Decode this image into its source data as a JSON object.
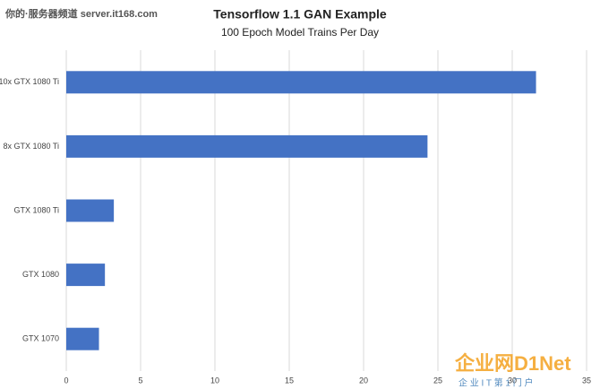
{
  "chart_data": {
    "type": "bar",
    "orientation": "horizontal",
    "title": "Tensorflow 1.1 GAN Example",
    "subtitle": "100 Epoch Model Trains Per Day",
    "categories": [
      "10x GTX 1080 Ti",
      "8x GTX 1080 Ti",
      "GTX 1080 Ti",
      "GTX 1080",
      "GTX 1070"
    ],
    "values": [
      31.6,
      24.3,
      3.2,
      2.6,
      2.2
    ],
    "color": "#4472c4",
    "xlim": [
      0,
      35
    ],
    "xticks": [
      0,
      5,
      10,
      15,
      20,
      25,
      30,
      35
    ],
    "grid": true
  },
  "watermarks": [
    "你的·服务器频道 server.it168.com",
    "企业网D1Net",
    "企 业 I T 第 1 门 户"
  ]
}
